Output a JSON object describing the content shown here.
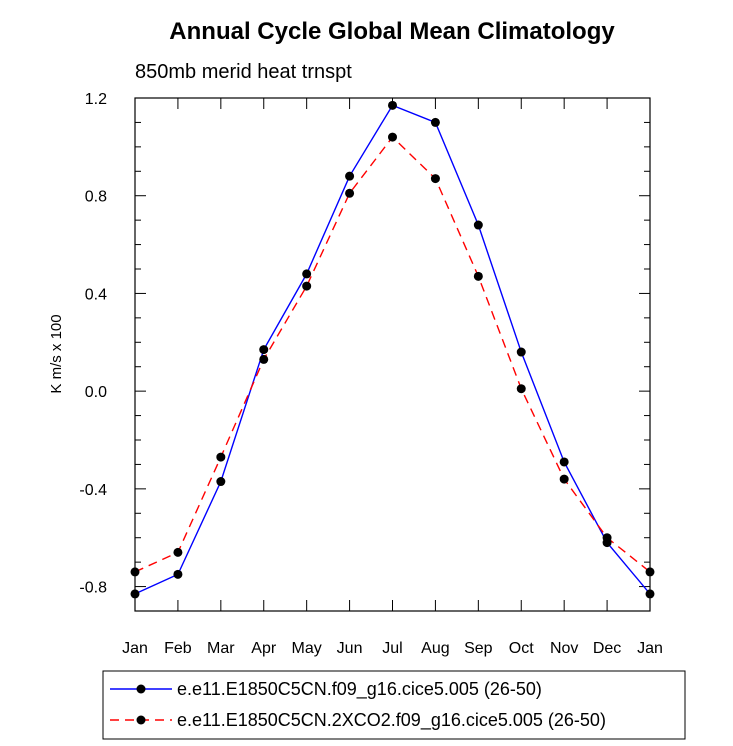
{
  "chart_data": {
    "type": "line",
    "title": "Annual Cycle Global Mean Climatology",
    "subtitle": "850mb merid heat trnspt",
    "xlabel": "",
    "ylabel": "K m/s x 100",
    "categories": [
      "Jan",
      "Feb",
      "Mar",
      "Apr",
      "May",
      "Jun",
      "Jul",
      "Aug",
      "Sep",
      "Oct",
      "Nov",
      "Dec",
      "Jan"
    ],
    "ylim": [
      -0.9,
      1.2
    ],
    "yticks": [
      -0.8,
      -0.4,
      0.0,
      0.4,
      0.8,
      1.2
    ],
    "ytick_labels": [
      "-0.8",
      "-0.4",
      "0.0",
      "0.4",
      "0.8",
      "1.2"
    ],
    "series": [
      {
        "name": "e.e11.E1850C5CN.f09_g16.cice5.005 (26-50)",
        "color": "#0000ff",
        "dash": "solid",
        "values": [
          -0.83,
          -0.75,
          -0.37,
          0.17,
          0.48,
          0.88,
          1.17,
          1.1,
          0.68,
          0.16,
          -0.29,
          -0.62,
          -0.83
        ]
      },
      {
        "name": "e.e11.E1850C5CN.2XCO2.f09_g16.cice5.005 (26-50)",
        "color": "#ff0000",
        "dash": "dashed",
        "values": [
          -0.74,
          -0.66,
          -0.27,
          0.13,
          0.43,
          0.81,
          1.04,
          0.87,
          0.47,
          0.01,
          -0.36,
          -0.6,
          -0.74
        ]
      }
    ],
    "legend_position": "bottom"
  }
}
